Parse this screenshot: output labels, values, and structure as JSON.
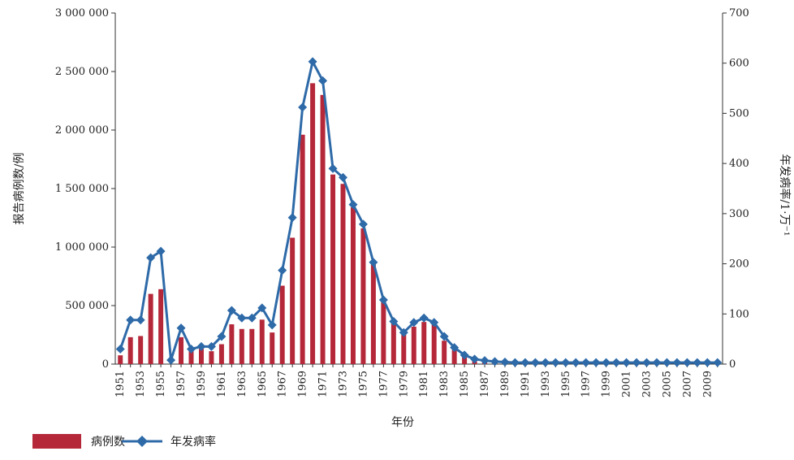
{
  "chart_data": {
    "type": "bar",
    "xlabel": "年份",
    "ylabel_left": "报告病例数/例",
    "ylabel_right": "年发病率/1·万⁻¹",
    "ylim_left": [
      0,
      3000000
    ],
    "ylim_right": [
      0,
      700
    ],
    "left_ticks": [
      "0",
      "500 000",
      "1 000 000",
      "1 500 000",
      "2 000 000",
      "2 500 000",
      "3 000 000"
    ],
    "left_tick_values": [
      0,
      500000,
      1000000,
      1500000,
      2000000,
      2500000,
      3000000
    ],
    "right_ticks": [
      "0",
      "100",
      "200",
      "300",
      "400",
      "500",
      "600",
      "700"
    ],
    "right_tick_values": [
      0,
      100,
      200,
      300,
      400,
      500,
      600,
      700
    ],
    "years": [
      1951,
      1952,
      1953,
      1954,
      1955,
      1956,
      1957,
      1958,
      1959,
      1960,
      1961,
      1962,
      1963,
      1964,
      1965,
      1966,
      1967,
      1968,
      1969,
      1970,
      1971,
      1972,
      1973,
      1974,
      1975,
      1976,
      1977,
      1978,
      1979,
      1980,
      1981,
      1982,
      1983,
      1984,
      1985,
      1986,
      1987,
      1988,
      1989,
      1990,
      1991,
      1992,
      1993,
      1994,
      1995,
      1996,
      1997,
      1998,
      1999,
      2000,
      2001,
      2002,
      2003,
      2004,
      2005,
      2006,
      2007,
      2008,
      2009,
      2010
    ],
    "x_tick_labels": [
      "1951",
      "1953",
      "1955",
      "1957",
      "1959",
      "1961",
      "1963",
      "1965",
      "1967",
      "1969",
      "1971",
      "1973",
      "1975",
      "1977",
      "1979",
      "1981",
      "1983",
      "1985",
      "1987",
      "1989",
      "1991",
      "1993",
      "1995",
      "1997",
      "1999",
      "2001",
      "2003",
      "2005",
      "2007",
      "2009"
    ],
    "series": [
      {
        "name": "病例数",
        "type": "bar",
        "axis": "left",
        "color": "#b5283a",
        "values": [
          75000,
          230000,
          240000,
          600000,
          640000,
          0,
          230000,
          140000,
          130000,
          110000,
          170000,
          340000,
          300000,
          300000,
          380000,
          270000,
          670000,
          1080000,
          1960000,
          2400000,
          2300000,
          1620000,
          1540000,
          1340000,
          1160000,
          860000,
          540000,
          350000,
          280000,
          320000,
          360000,
          340000,
          200000,
          120000,
          70000,
          40000,
          25000,
          15000,
          10000,
          8000,
          6000,
          5000,
          4000,
          3500,
          3000,
          2500,
          2000,
          1800,
          1500,
          1200,
          1000,
          900,
          800,
          700,
          600,
          500,
          400,
          350,
          300,
          250
        ]
      },
      {
        "name": "年发病率",
        "type": "line",
        "axis": "right",
        "color": "#2e6aa8",
        "values": [
          30,
          88,
          88,
          212,
          225,
          8,
          72,
          30,
          35,
          35,
          55,
          107,
          92,
          92,
          112,
          78,
          187,
          292,
          512,
          603,
          565,
          390,
          372,
          318,
          279,
          203,
          128,
          85,
          63,
          83,
          92,
          83,
          55,
          33,
          18,
          10,
          7,
          5,
          4,
          3,
          3,
          3,
          3,
          3,
          3,
          3,
          3,
          3,
          3,
          3,
          3,
          3,
          3,
          3,
          3,
          3,
          3,
          3,
          3,
          3
        ]
      }
    ],
    "legend_position": "bottom-left",
    "grid": false
  }
}
